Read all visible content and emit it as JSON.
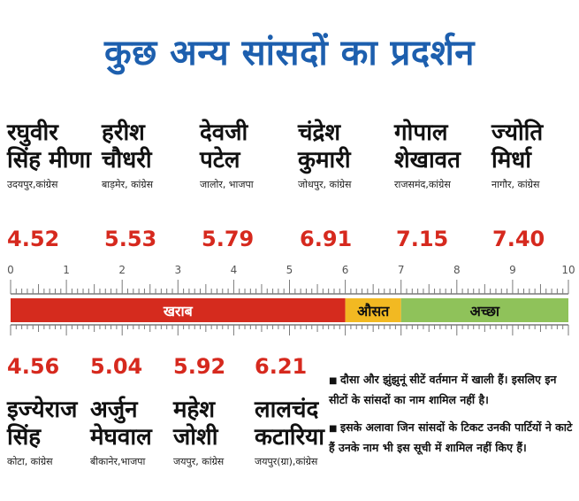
{
  "title": "कुछ अन्य सांसदों का प्रदर्शन",
  "top_mps": [
    {
      "name": "रघुवीर\nसिंह मीणा",
      "place": "उदयपुर,कांग्रेस",
      "score": "4.52"
    },
    {
      "name": "हरीश\nचौधरी",
      "place": "बाड़मेर, कांग्रेस",
      "score": "5.53"
    },
    {
      "name": "देवजी\nपटेल",
      "place": "जालोर, भाजपा",
      "score": "5.79"
    },
    {
      "name": "चंद्रेश\nकुमारी",
      "place": "जोधपुर, कांग्रेस",
      "score": "6.91"
    },
    {
      "name": "गोपाल\nशेखावत",
      "place": "राजसमंद,कांग्रेस",
      "score": "7.15"
    },
    {
      "name": "ज्योति\nमिर्धा",
      "place": "नागौर, कांग्रेस",
      "score": "7.40"
    }
  ],
  "bottom_mps": [
    {
      "name": "इज्येराज\nसिंह",
      "place": "कोटा, कांग्रेस",
      "score": "4.56"
    },
    {
      "name": "अर्जुन\nमेघवाल",
      "place": "बीकानेर,भाजपा",
      "score": "5.04"
    },
    {
      "name": "महेश\nजोशी",
      "place": "जयपुर, कांग्रेस",
      "score": "5.92"
    },
    {
      "name": "लालचंद\nकटारिया",
      "place": "जयपुर(ग्रा),कांग्रेस",
      "score": "6.21"
    }
  ],
  "notes": [
    "दौसा और झुंझुनूं सीटें वर्तमान में खाली हैं। इसलिए इन सीटों के सांसदों का नाम शामिल नहीं है।",
    "इसके अलावा जिन सांसदों के टिकट उनकी पार्टियों ने काटे हैं उनके नाम भी इस सूची में शामिल नहीं किए हैं।"
  ],
  "chart_data": {
    "type": "bar",
    "xlim": [
      0,
      10
    ],
    "ticks": [
      "0",
      "1",
      "2",
      "3",
      "4",
      "5",
      "6",
      "7",
      "8",
      "9",
      "10"
    ],
    "bands": [
      {
        "label": "खराब",
        "from": 0,
        "to": 6,
        "color": "#d52b1e",
        "text_color": "#ffffff"
      },
      {
        "label": "औसत",
        "from": 6,
        "to": 7,
        "color": "#f2b922",
        "text_color": "#111111"
      },
      {
        "label": "अच्छा",
        "from": 7,
        "to": 10,
        "color": "#8fc25a",
        "text_color": "#111111"
      }
    ],
    "axis_color": "#7a7a7a",
    "label_color": "#555555"
  }
}
